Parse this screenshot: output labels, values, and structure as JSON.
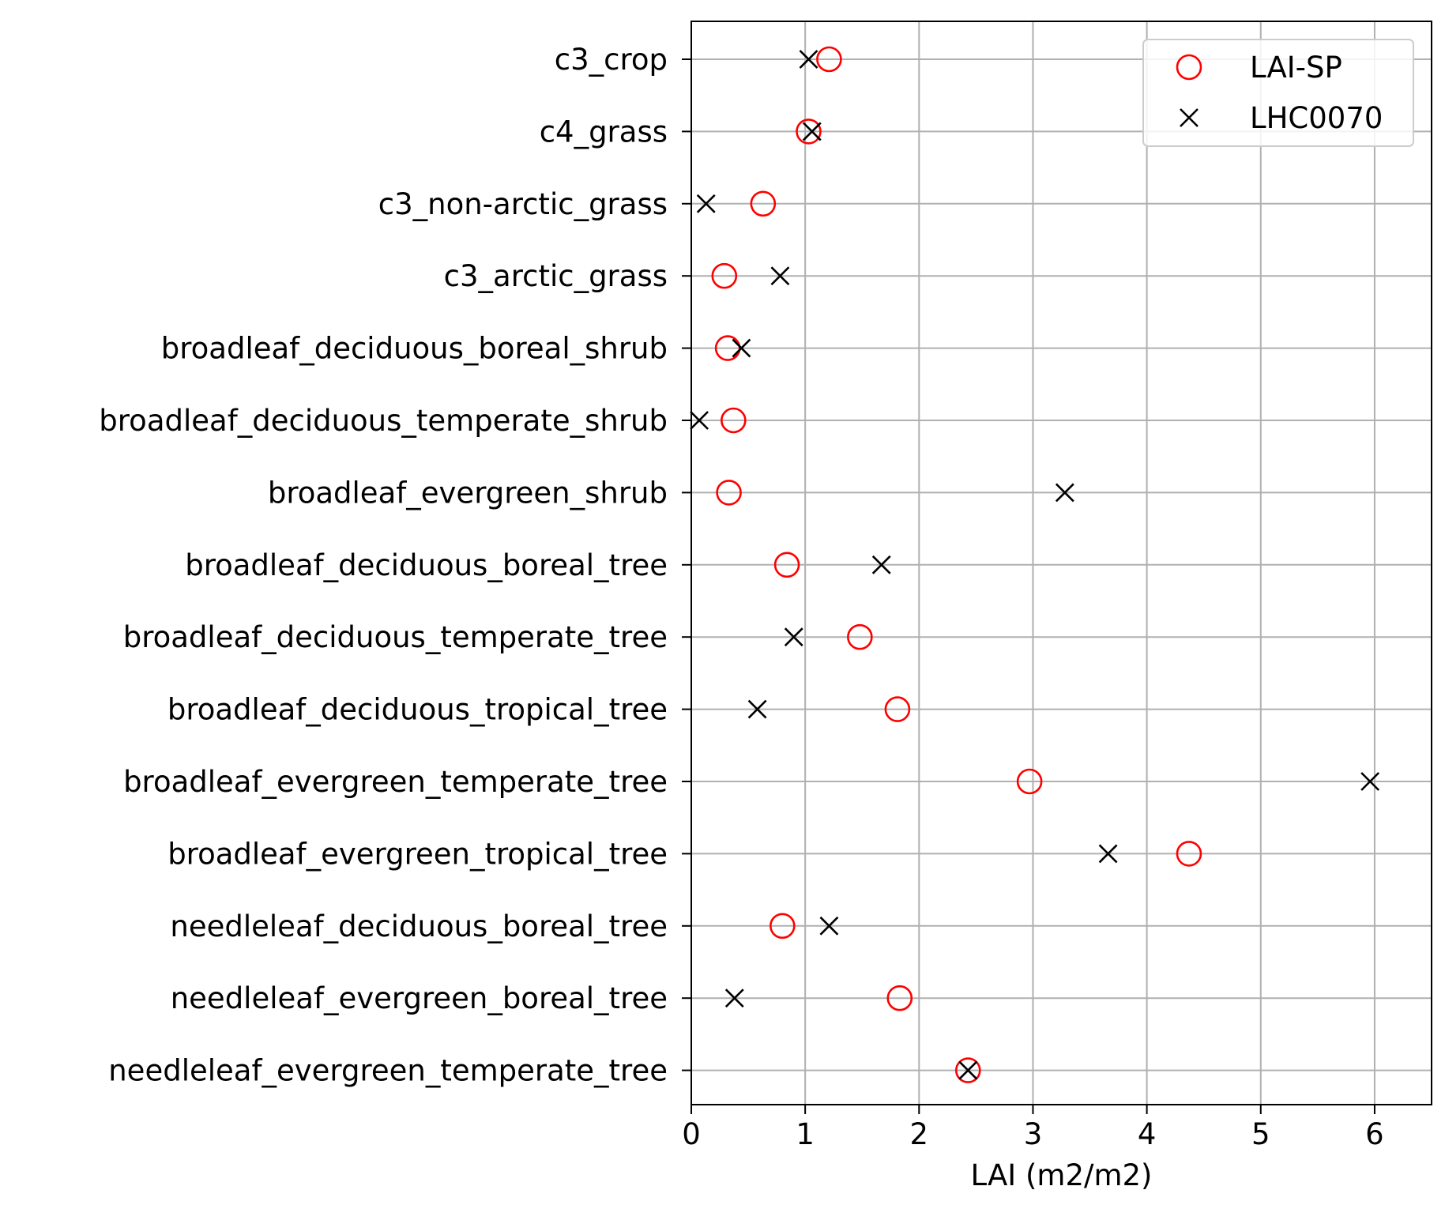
{
  "chart_data": {
    "type": "scatter",
    "title": "",
    "xlabel": "LAI (m2/m2)",
    "ylabel": "",
    "xlim": [
      0,
      6.5
    ],
    "xticks": [
      0,
      1,
      2,
      3,
      4,
      5,
      6
    ],
    "grid": true,
    "legend_position": "top-right",
    "categories": [
      "c3_crop",
      "c4_grass",
      "c3_non-arctic_grass",
      "c3_arctic_grass",
      "broadleaf_deciduous_boreal_shrub",
      "broadleaf_deciduous_temperate_shrub",
      "broadleaf_evergreen_shrub",
      "broadleaf_deciduous_boreal_tree",
      "broadleaf_deciduous_temperate_tree",
      "broadleaf_deciduous_tropical_tree",
      "broadleaf_evergreen_temperate_tree",
      "broadleaf_evergreen_tropical_tree",
      "needleleaf_deciduous_boreal_tree",
      "needleleaf_evergreen_boreal_tree",
      "needleleaf_evergreen_temperate_tree"
    ],
    "series": [
      {
        "name": "LAI-SP",
        "marker": "circle-open",
        "color": "#ff0000",
        "values": [
          1.21,
          1.03,
          0.63,
          0.29,
          0.32,
          0.37,
          0.33,
          0.84,
          1.48,
          1.81,
          2.97,
          4.37,
          0.8,
          1.83,
          2.43
        ]
      },
      {
        "name": "LHC0070",
        "marker": "x",
        "color": "#000000",
        "values": [
          1.03,
          1.06,
          0.13,
          0.78,
          0.44,
          0.07,
          3.28,
          1.67,
          0.9,
          0.58,
          5.96,
          3.66,
          1.21,
          0.38,
          2.43
        ]
      }
    ]
  }
}
